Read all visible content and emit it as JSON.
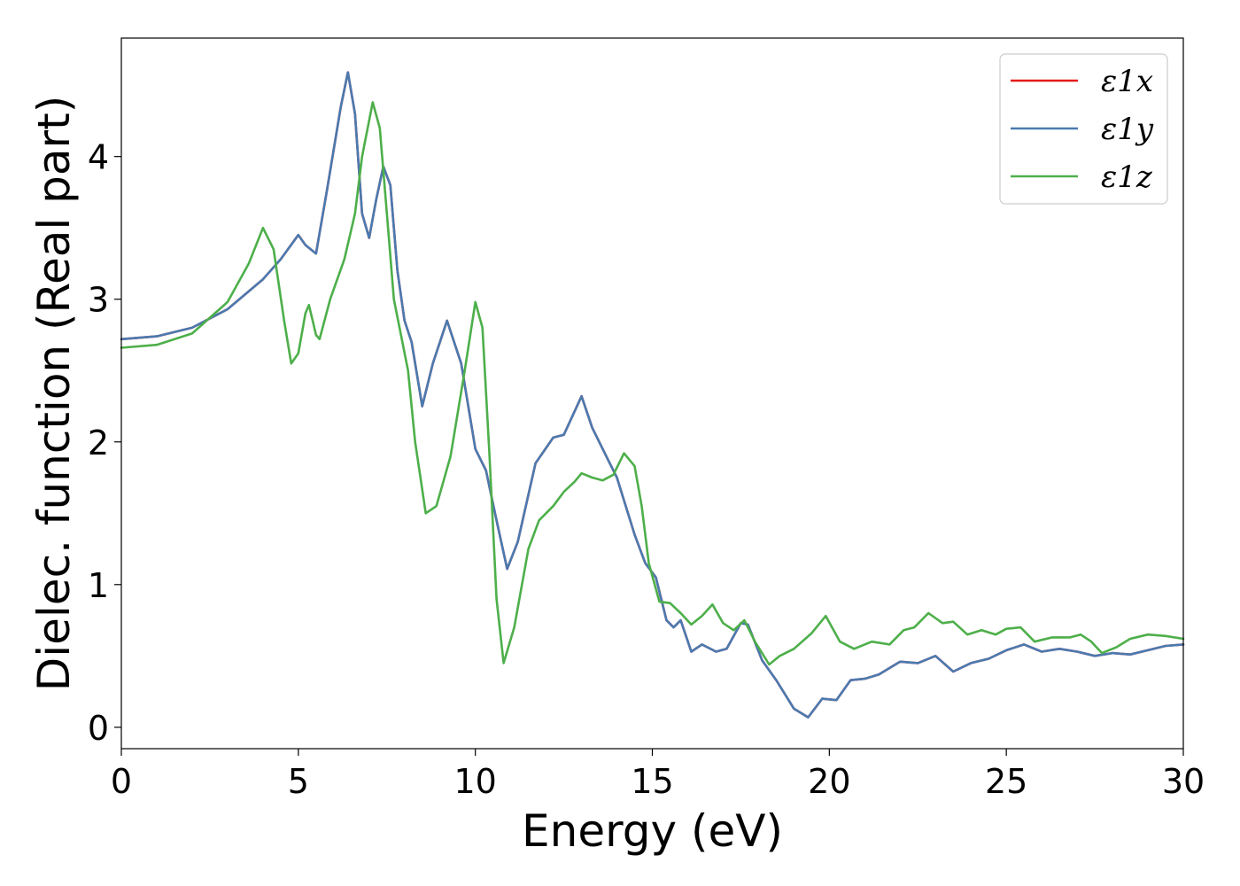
{
  "chart_data": {
    "type": "line",
    "title": "",
    "xlabel": "Energy (eV)",
    "ylabel": "Dielec. function (Real part)",
    "xlim": [
      0,
      30
    ],
    "ylim": [
      -0.15,
      4.83
    ],
    "xticks": [
      0,
      5,
      10,
      15,
      20,
      25,
      30
    ],
    "xtick_labels": [
      "0",
      "5",
      "10",
      "15",
      "20",
      "25",
      "30"
    ],
    "yticks": [
      0,
      1,
      2,
      3,
      4
    ],
    "ytick_labels": [
      "0",
      "1",
      "2",
      "3",
      "4"
    ],
    "grid": false,
    "legend_position": "top-right",
    "series": [
      {
        "name": "ε1x",
        "color": "#e41a1c",
        "points": [
          [
            0,
            2.72
          ],
          [
            1,
            2.74
          ],
          [
            2,
            2.8
          ],
          [
            3,
            2.93
          ],
          [
            4,
            3.14
          ],
          [
            4.5,
            3.28
          ],
          [
            5,
            3.45
          ],
          [
            5.2,
            3.38
          ],
          [
            5.5,
            3.32
          ],
          [
            5.8,
            3.75
          ],
          [
            6.2,
            4.35
          ],
          [
            6.4,
            4.59
          ],
          [
            6.6,
            4.3
          ],
          [
            6.8,
            3.6
          ],
          [
            7.0,
            3.43
          ],
          [
            7.2,
            3.7
          ],
          [
            7.4,
            3.93
          ],
          [
            7.6,
            3.8
          ],
          [
            7.8,
            3.2
          ],
          [
            8.0,
            2.85
          ],
          [
            8.2,
            2.7
          ],
          [
            8.5,
            2.25
          ],
          [
            8.8,
            2.55
          ],
          [
            9.2,
            2.85
          ],
          [
            9.6,
            2.55
          ],
          [
            10.0,
            1.95
          ],
          [
            10.3,
            1.8
          ],
          [
            10.6,
            1.45
          ],
          [
            10.9,
            1.11
          ],
          [
            11.2,
            1.3
          ],
          [
            11.7,
            1.85
          ],
          [
            12.2,
            2.03
          ],
          [
            12.5,
            2.05
          ],
          [
            13.0,
            2.32
          ],
          [
            13.3,
            2.1
          ],
          [
            13.7,
            1.9
          ],
          [
            14.0,
            1.75
          ],
          [
            14.5,
            1.35
          ],
          [
            14.8,
            1.15
          ],
          [
            15.1,
            1.05
          ],
          [
            15.4,
            0.75
          ],
          [
            15.6,
            0.7
          ],
          [
            15.8,
            0.75
          ],
          [
            16.1,
            0.53
          ],
          [
            16.4,
            0.58
          ],
          [
            16.8,
            0.53
          ],
          [
            17.1,
            0.55
          ],
          [
            17.5,
            0.73
          ],
          [
            17.7,
            0.72
          ],
          [
            18.1,
            0.47
          ],
          [
            18.5,
            0.33
          ],
          [
            19.0,
            0.13
          ],
          [
            19.4,
            0.07
          ],
          [
            19.8,
            0.2
          ],
          [
            20.2,
            0.19
          ],
          [
            20.6,
            0.33
          ],
          [
            21.0,
            0.34
          ],
          [
            21.4,
            0.37
          ],
          [
            22.0,
            0.46
          ],
          [
            22.5,
            0.45
          ],
          [
            23.0,
            0.5
          ],
          [
            23.5,
            0.39
          ],
          [
            24.0,
            0.45
          ],
          [
            24.5,
            0.48
          ],
          [
            25.0,
            0.54
          ],
          [
            25.5,
            0.58
          ],
          [
            26.0,
            0.53
          ],
          [
            26.5,
            0.55
          ],
          [
            27.0,
            0.53
          ],
          [
            27.5,
            0.5
          ],
          [
            28.0,
            0.52
          ],
          [
            28.5,
            0.51
          ],
          [
            29.0,
            0.54
          ],
          [
            29.5,
            0.57
          ],
          [
            30.0,
            0.58
          ]
        ]
      },
      {
        "name": "ε1y",
        "color": "#4a7ab0",
        "points": [
          [
            0,
            2.72
          ],
          [
            1,
            2.74
          ],
          [
            2,
            2.8
          ],
          [
            3,
            2.93
          ],
          [
            4,
            3.14
          ],
          [
            4.5,
            3.28
          ],
          [
            5,
            3.45
          ],
          [
            5.2,
            3.38
          ],
          [
            5.5,
            3.32
          ],
          [
            5.8,
            3.75
          ],
          [
            6.2,
            4.35
          ],
          [
            6.4,
            4.59
          ],
          [
            6.6,
            4.3
          ],
          [
            6.8,
            3.6
          ],
          [
            7.0,
            3.43
          ],
          [
            7.2,
            3.7
          ],
          [
            7.4,
            3.93
          ],
          [
            7.6,
            3.8
          ],
          [
            7.8,
            3.2
          ],
          [
            8.0,
            2.85
          ],
          [
            8.2,
            2.7
          ],
          [
            8.5,
            2.25
          ],
          [
            8.8,
            2.55
          ],
          [
            9.2,
            2.85
          ],
          [
            9.6,
            2.55
          ],
          [
            10.0,
            1.95
          ],
          [
            10.3,
            1.8
          ],
          [
            10.6,
            1.45
          ],
          [
            10.9,
            1.11
          ],
          [
            11.2,
            1.3
          ],
          [
            11.7,
            1.85
          ],
          [
            12.2,
            2.03
          ],
          [
            12.5,
            2.05
          ],
          [
            13.0,
            2.32
          ],
          [
            13.3,
            2.1
          ],
          [
            13.7,
            1.9
          ],
          [
            14.0,
            1.75
          ],
          [
            14.5,
            1.35
          ],
          [
            14.8,
            1.15
          ],
          [
            15.1,
            1.05
          ],
          [
            15.4,
            0.75
          ],
          [
            15.6,
            0.7
          ],
          [
            15.8,
            0.75
          ],
          [
            16.1,
            0.53
          ],
          [
            16.4,
            0.58
          ],
          [
            16.8,
            0.53
          ],
          [
            17.1,
            0.55
          ],
          [
            17.5,
            0.73
          ],
          [
            17.7,
            0.72
          ],
          [
            18.1,
            0.47
          ],
          [
            18.5,
            0.33
          ],
          [
            19.0,
            0.13
          ],
          [
            19.4,
            0.07
          ],
          [
            19.8,
            0.2
          ],
          [
            20.2,
            0.19
          ],
          [
            20.6,
            0.33
          ],
          [
            21.0,
            0.34
          ],
          [
            21.4,
            0.37
          ],
          [
            22.0,
            0.46
          ],
          [
            22.5,
            0.45
          ],
          [
            23.0,
            0.5
          ],
          [
            23.5,
            0.39
          ],
          [
            24.0,
            0.45
          ],
          [
            24.5,
            0.48
          ],
          [
            25.0,
            0.54
          ],
          [
            25.5,
            0.58
          ],
          [
            26.0,
            0.53
          ],
          [
            26.5,
            0.55
          ],
          [
            27.0,
            0.53
          ],
          [
            27.5,
            0.5
          ],
          [
            28.0,
            0.52
          ],
          [
            28.5,
            0.51
          ],
          [
            29.0,
            0.54
          ],
          [
            29.5,
            0.57
          ],
          [
            30.0,
            0.58
          ]
        ]
      },
      {
        "name": "ε1z",
        "color": "#4daf4a",
        "points": [
          [
            0,
            2.66
          ],
          [
            1,
            2.68
          ],
          [
            2,
            2.76
          ],
          [
            3,
            2.98
          ],
          [
            3.6,
            3.25
          ],
          [
            4.0,
            3.5
          ],
          [
            4.3,
            3.35
          ],
          [
            4.6,
            2.85
          ],
          [
            4.8,
            2.55
          ],
          [
            5.0,
            2.62
          ],
          [
            5.2,
            2.9
          ],
          [
            5.3,
            2.96
          ],
          [
            5.5,
            2.75
          ],
          [
            5.6,
            2.72
          ],
          [
            5.9,
            3.0
          ],
          [
            6.3,
            3.28
          ],
          [
            6.6,
            3.6
          ],
          [
            6.8,
            4.0
          ],
          [
            7.1,
            4.38
          ],
          [
            7.3,
            4.2
          ],
          [
            7.5,
            3.6
          ],
          [
            7.7,
            3.0
          ],
          [
            7.9,
            2.75
          ],
          [
            8.1,
            2.5
          ],
          [
            8.3,
            2.0
          ],
          [
            8.6,
            1.5
          ],
          [
            8.9,
            1.55
          ],
          [
            9.3,
            1.9
          ],
          [
            9.7,
            2.5
          ],
          [
            10.0,
            2.98
          ],
          [
            10.2,
            2.8
          ],
          [
            10.4,
            1.9
          ],
          [
            10.6,
            0.9
          ],
          [
            10.8,
            0.45
          ],
          [
            11.1,
            0.7
          ],
          [
            11.5,
            1.25
          ],
          [
            11.8,
            1.45
          ],
          [
            12.2,
            1.55
          ],
          [
            12.5,
            1.65
          ],
          [
            12.8,
            1.72
          ],
          [
            13.0,
            1.78
          ],
          [
            13.3,
            1.75
          ],
          [
            13.6,
            1.73
          ],
          [
            13.9,
            1.77
          ],
          [
            14.2,
            1.92
          ],
          [
            14.5,
            1.83
          ],
          [
            14.7,
            1.55
          ],
          [
            14.9,
            1.15
          ],
          [
            15.2,
            0.88
          ],
          [
            15.5,
            0.87
          ],
          [
            15.8,
            0.8
          ],
          [
            16.1,
            0.72
          ],
          [
            16.4,
            0.78
          ],
          [
            16.7,
            0.86
          ],
          [
            17.0,
            0.73
          ],
          [
            17.3,
            0.68
          ],
          [
            17.6,
            0.75
          ],
          [
            17.9,
            0.6
          ],
          [
            18.3,
            0.44
          ],
          [
            18.6,
            0.5
          ],
          [
            19.0,
            0.55
          ],
          [
            19.5,
            0.66
          ],
          [
            19.9,
            0.78
          ],
          [
            20.3,
            0.6
          ],
          [
            20.7,
            0.55
          ],
          [
            21.2,
            0.6
          ],
          [
            21.7,
            0.58
          ],
          [
            22.1,
            0.68
          ],
          [
            22.4,
            0.7
          ],
          [
            22.8,
            0.8
          ],
          [
            23.2,
            0.73
          ],
          [
            23.5,
            0.74
          ],
          [
            23.9,
            0.65
          ],
          [
            24.3,
            0.68
          ],
          [
            24.7,
            0.65
          ],
          [
            25.0,
            0.69
          ],
          [
            25.4,
            0.7
          ],
          [
            25.8,
            0.6
          ],
          [
            26.3,
            0.63
          ],
          [
            26.8,
            0.63
          ],
          [
            27.1,
            0.65
          ],
          [
            27.4,
            0.6
          ],
          [
            27.7,
            0.52
          ],
          [
            28.1,
            0.56
          ],
          [
            28.5,
            0.62
          ],
          [
            29.0,
            0.65
          ],
          [
            29.5,
            0.64
          ],
          [
            30.0,
            0.62
          ]
        ]
      }
    ]
  }
}
